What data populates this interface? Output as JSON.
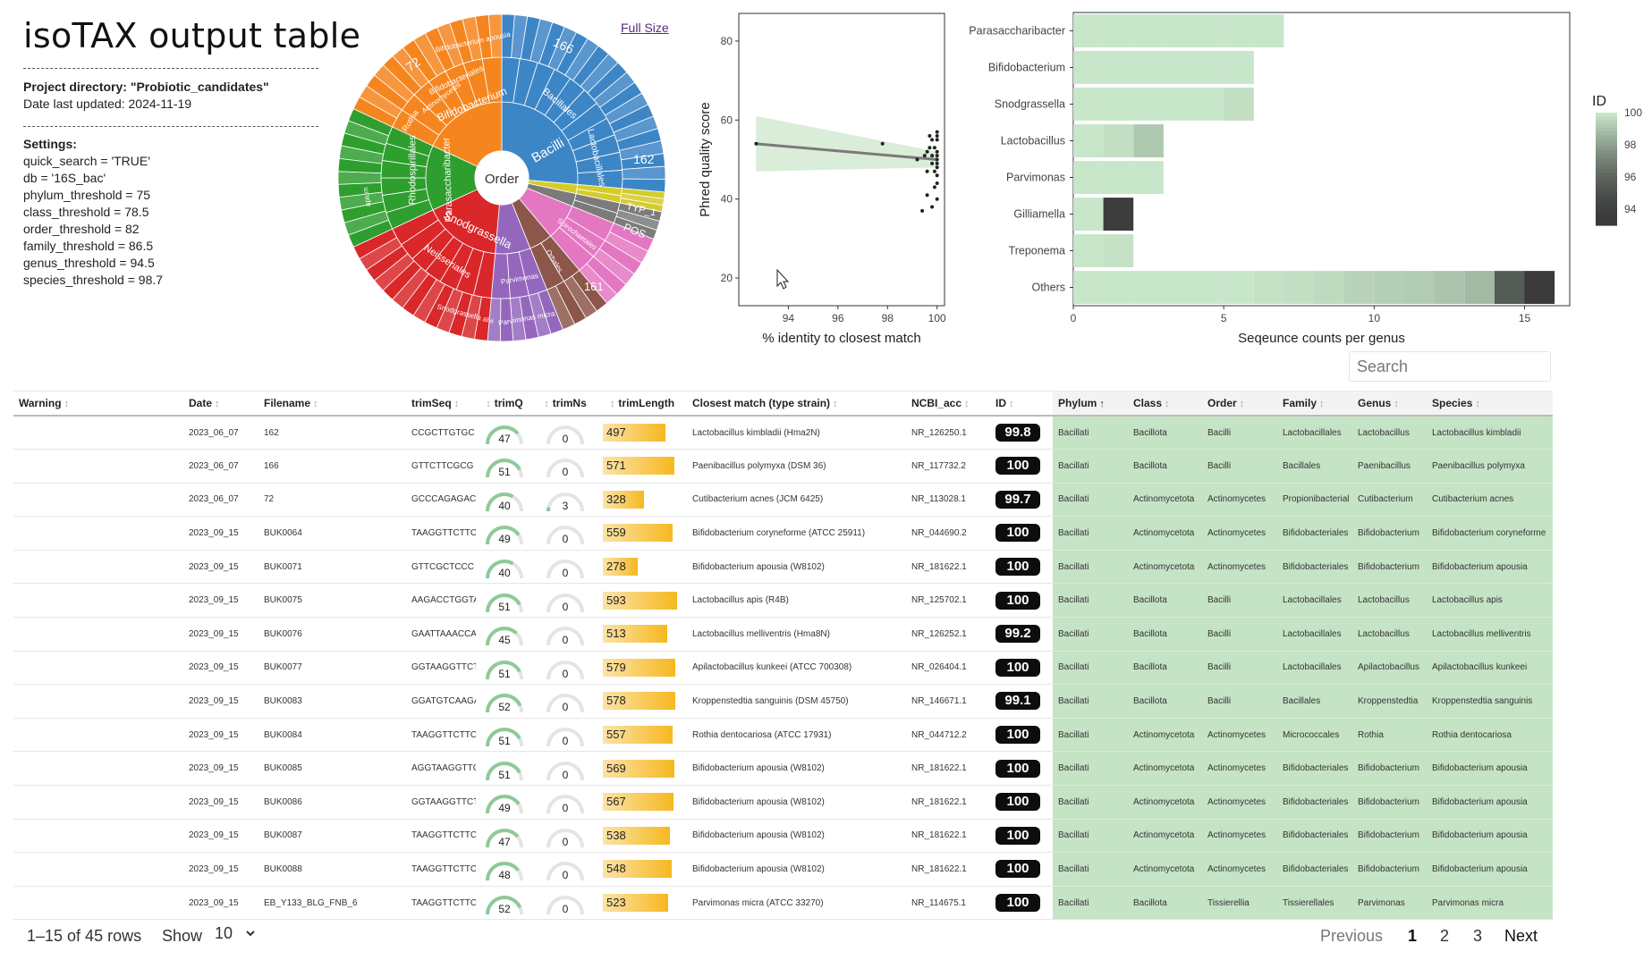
{
  "title": "isoTAX output table",
  "project": {
    "label": "Project directory:",
    "name": "\"Probiotic_candidates\"",
    "date_line": "Date last updated: 2024-11-19"
  },
  "settings": {
    "label": "Settings:",
    "lines": [
      "quick_search = 'TRUE'",
      "db = '16S_bac'",
      "phylum_threshold = 75",
      "class_threshold = 78.5",
      "order_threshold = 82",
      "family_threshold = 86.5",
      "genus_threshold = 94.5",
      "species_threshold = 98.7"
    ]
  },
  "full_size_link": "Full Size",
  "sunburst": {
    "center_label": "Order",
    "segments": [
      {
        "name": "Bacilli",
        "color": "#3d86c6"
      },
      {
        "name": "Bacillales",
        "color": "#3d86c6"
      },
      {
        "name": "Lactobacillales",
        "color": "#3d86c6"
      },
      {
        "name": "Actinomycetes",
        "color": "#f5861f"
      },
      {
        "name": "Bifidobacteriales",
        "color": "#f5861f"
      },
      {
        "name": "Bifidobacterium",
        "color": "#f5861f"
      },
      {
        "name": "Bifidobacterium apousia",
        "color": "#f5861f"
      },
      {
        "name": "Rothia",
        "color": "#f5861f"
      },
      {
        "name": "Rhodospirillales",
        "color": "#2e9e2e"
      },
      {
        "name": "Parasaccharibacter",
        "color": "#2e9e2e"
      },
      {
        "name": "apium",
        "color": "#2e9e2e"
      },
      {
        "name": "Neisseriales",
        "color": "#d9272a"
      },
      {
        "name": "Snodgrassella",
        "color": "#d9272a"
      },
      {
        "name": "Snodgrassella alvi",
        "color": "#d9272a"
      },
      {
        "name": "Parvimonas",
        "color": "#9467bd"
      },
      {
        "name": "Parvimonas micra",
        "color": "#9467bd"
      },
      {
        "name": "Orbales",
        "color": "#8c564b"
      },
      {
        "name": "Spirochaetales",
        "color": "#e377c2"
      },
      {
        "name": "TYP_1",
        "color": "#bcbd22"
      },
      {
        "name": "POS",
        "color": "#7f7f7f"
      }
    ],
    "counts": [
      "166",
      "162",
      "72",
      "161"
    ]
  },
  "scatter_chart": {
    "type": "scatter",
    "xlabel": "% identity to closest match",
    "ylabel": "Phred quality score",
    "xticks": [
      "94",
      "96",
      "98",
      "100"
    ],
    "yticks": [
      "20",
      "40",
      "60",
      "80"
    ],
    "xlim": [
      92,
      100.3
    ],
    "ylim": [
      13,
      87
    ],
    "points": [
      [
        92.7,
        54
      ],
      [
        97.8,
        54
      ],
      [
        99.2,
        50
      ],
      [
        99.5,
        51
      ],
      [
        99.6,
        47
      ],
      [
        99.6,
        52
      ],
      [
        99.7,
        56
      ],
      [
        99.7,
        53
      ],
      [
        99.8,
        55
      ],
      [
        99.8,
        38
      ],
      [
        99.8,
        49
      ],
      [
        99.9,
        43
      ],
      [
        99.9,
        47
      ],
      [
        100,
        52
      ],
      [
        100,
        49
      ],
      [
        100,
        57
      ],
      [
        100,
        44
      ],
      [
        100,
        55
      ],
      [
        100,
        51
      ],
      [
        100,
        48
      ],
      [
        100,
        40
      ],
      [
        100,
        56
      ],
      [
        99.4,
        37
      ],
      [
        99.6,
        41
      ],
      [
        100,
        46
      ],
      [
        99.9,
        53
      ],
      [
        100,
        50
      ],
      [
        99.8,
        51
      ]
    ],
    "trend": {
      "x0": 92.7,
      "y0": 54,
      "x1": 100,
      "y1": 50
    }
  },
  "chart_data": {
    "type": "bar",
    "title": "",
    "xlabel": "Seqeunce counts per genus",
    "ylabel": "",
    "xlim": [
      0,
      16.5
    ],
    "xticks": [
      "0",
      "5",
      "10",
      "15"
    ],
    "categories": [
      "Parasaccharibacter",
      "Bifidobacterium",
      "Snodgrassella",
      "Lactobacillus",
      "Parvimonas",
      "Gilliamella",
      "Treponema",
      "Others"
    ],
    "segments": [
      [
        100,
        100,
        100,
        100,
        100,
        100,
        100
      ],
      [
        100,
        100,
        100,
        100,
        100,
        100
      ],
      [
        100,
        100,
        100,
        100,
        100,
        99.8
      ],
      [
        100,
        99.8,
        99.2
      ],
      [
        100,
        100,
        100
      ],
      [
        100,
        93.5
      ],
      [
        100,
        99.9
      ],
      [
        100,
        100,
        100,
        100,
        100,
        100,
        99.9,
        99.8,
        99.7,
        99.5,
        99.4,
        99.3,
        99.1,
        98.8,
        95.5,
        93
      ]
    ],
    "legend": {
      "title": "ID",
      "ticks": [
        "100",
        "98",
        "96",
        "94"
      ],
      "range": [
        93,
        100
      ]
    }
  },
  "table": {
    "search_placeholder": "Search",
    "columns": [
      "Warning",
      "Date",
      "Filename",
      "trimSeq",
      "trimQ",
      "trimNs",
      "trimLength",
      "Closest match (type strain)",
      "NCBI_acc",
      "ID",
      "Phylum",
      "Class",
      "Order",
      "Family",
      "Genus",
      "Species"
    ],
    "rows": [
      {
        "warning": "",
        "date": "2023_06_07",
        "filename": "162",
        "seq": "CCGCTTGTGC",
        "q": 47,
        "ns": 0,
        "len": 497,
        "match": "Lactobacillus kimbladii (Hma2N)",
        "acc": "NR_126250.1",
        "id": "99.8",
        "phylum": "Bacillati",
        "class": "Bacillota",
        "order": "Bacilli",
        "family": "Lactobacillales",
        "genus": "Lactobacillus",
        "species": "Lactobacillus kimbladii"
      },
      {
        "warning": "",
        "date": "2023_06_07",
        "filename": "166",
        "seq": "GTTCTTCGCG",
        "q": 51,
        "ns": 0,
        "len": 571,
        "match": "Paenibacillus polymyxa (DSM 36)",
        "acc": "NR_117732.2",
        "id": "100",
        "phylum": "Bacillati",
        "class": "Bacillota",
        "order": "Bacilli",
        "family": "Bacillales",
        "genus": "Paenibacillus",
        "species": "Paenibacillus polymyxa"
      },
      {
        "warning": "",
        "date": "2023_06_07",
        "filename": "72",
        "seq": "GCCCAGAGAC",
        "q": 40,
        "ns": 3,
        "len": 328,
        "match": "Cutibacterium acnes (JCM 6425)",
        "acc": "NR_113028.1",
        "id": "99.7",
        "phylum": "Bacillati",
        "class": "Actinomycetota",
        "order": "Actinomycetes",
        "family": "Propionibacterial",
        "genus": "Cutibacterium",
        "species": "Cutibacterium acnes"
      },
      {
        "warning": "",
        "date": "2023_09_15",
        "filename": "BUK0064",
        "seq": "TAAGGTTCTTC",
        "q": 49,
        "ns": 0,
        "len": 559,
        "match": "Bifidobacterium coryneforme (ATCC 25911)",
        "acc": "NR_044690.2",
        "id": "100",
        "phylum": "Bacillati",
        "class": "Actinomycetota",
        "order": "Actinomycetes",
        "family": "Bifidobacteriales",
        "genus": "Bifidobacterium",
        "species": "Bifidobacterium coryneforme"
      },
      {
        "warning": "",
        "date": "2023_09_15",
        "filename": "BUK0071",
        "seq": "GTTCGCTCCC",
        "q": 40,
        "ns": 0,
        "len": 278,
        "match": "Bifidobacterium apousia (W8102)",
        "acc": "NR_181622.1",
        "id": "100",
        "phylum": "Bacillati",
        "class": "Actinomycetota",
        "order": "Actinomycetes",
        "family": "Bifidobacteriales",
        "genus": "Bifidobacterium",
        "species": "Bifidobacterium apousia"
      },
      {
        "warning": "",
        "date": "2023_09_15",
        "filename": "BUK0075",
        "seq": "AAGACCTGGTA",
        "q": 51,
        "ns": 0,
        "len": 593,
        "match": "Lactobacillus apis (R4B)",
        "acc": "NR_125702.1",
        "id": "100",
        "phylum": "Bacillati",
        "class": "Bacillota",
        "order": "Bacilli",
        "family": "Lactobacillales",
        "genus": "Lactobacillus",
        "species": "Lactobacillus apis"
      },
      {
        "warning": "",
        "date": "2023_09_15",
        "filename": "BUK0076",
        "seq": "GAATTAAACCAC",
        "q": 45,
        "ns": 0,
        "len": 513,
        "match": "Lactobacillus melliventris (Hma8N)",
        "acc": "NR_126252.1",
        "id": "99.2",
        "phylum": "Bacillati",
        "class": "Bacillota",
        "order": "Bacilli",
        "family": "Lactobacillales",
        "genus": "Lactobacillus",
        "species": "Lactobacillus melliventris"
      },
      {
        "warning": "",
        "date": "2023_09_15",
        "filename": "BUK0077",
        "seq": "GGTAAGGTTCT",
        "q": 51,
        "ns": 0,
        "len": 579,
        "match": "Apilactobacillus kunkeei (ATCC 700308)",
        "acc": "NR_026404.1",
        "id": "100",
        "phylum": "Bacillati",
        "class": "Bacillota",
        "order": "Bacilli",
        "family": "Lactobacillales",
        "genus": "Apilactobacillus",
        "species": "Apilactobacillus kunkeei"
      },
      {
        "warning": "",
        "date": "2023_09_15",
        "filename": "BUK0083",
        "seq": "GGATGTCAAGA",
        "q": 52,
        "ns": 0,
        "len": 578,
        "match": "Kroppenstedtia sanguinis (DSM 45750)",
        "acc": "NR_146671.1",
        "id": "99.1",
        "phylum": "Bacillati",
        "class": "Bacillota",
        "order": "Bacilli",
        "family": "Bacillales",
        "genus": "Kroppenstedtia",
        "species": "Kroppenstedtia sanguinis"
      },
      {
        "warning": "",
        "date": "2023_09_15",
        "filename": "BUK0084",
        "seq": "TAAGGTTCTTC",
        "q": 51,
        "ns": 0,
        "len": 557,
        "match": "Rothia dentocariosa (ATCC 17931)",
        "acc": "NR_044712.2",
        "id": "100",
        "phylum": "Bacillati",
        "class": "Actinomycetota",
        "order": "Actinomycetes",
        "family": "Micrococcales",
        "genus": "Rothia",
        "species": "Rothia dentocariosa"
      },
      {
        "warning": "",
        "date": "2023_09_15",
        "filename": "BUK0085",
        "seq": "AGGTAAGGTTC",
        "q": 51,
        "ns": 0,
        "len": 569,
        "match": "Bifidobacterium apousia (W8102)",
        "acc": "NR_181622.1",
        "id": "100",
        "phylum": "Bacillati",
        "class": "Actinomycetota",
        "order": "Actinomycetes",
        "family": "Bifidobacteriales",
        "genus": "Bifidobacterium",
        "species": "Bifidobacterium apousia"
      },
      {
        "warning": "",
        "date": "2023_09_15",
        "filename": "BUK0086",
        "seq": "GGTAAGGTTCT",
        "q": 49,
        "ns": 0,
        "len": 567,
        "match": "Bifidobacterium apousia (W8102)",
        "acc": "NR_181622.1",
        "id": "100",
        "phylum": "Bacillati",
        "class": "Actinomycetota",
        "order": "Actinomycetes",
        "family": "Bifidobacteriales",
        "genus": "Bifidobacterium",
        "species": "Bifidobacterium apousia"
      },
      {
        "warning": "",
        "date": "2023_09_15",
        "filename": "BUK0087",
        "seq": "TAAGGTTCTTC",
        "q": 47,
        "ns": 0,
        "len": 538,
        "match": "Bifidobacterium apousia (W8102)",
        "acc": "NR_181622.1",
        "id": "100",
        "phylum": "Bacillati",
        "class": "Actinomycetota",
        "order": "Actinomycetes",
        "family": "Bifidobacteriales",
        "genus": "Bifidobacterium",
        "species": "Bifidobacterium apousia"
      },
      {
        "warning": "",
        "date": "2023_09_15",
        "filename": "BUK0088",
        "seq": "TAAGGTTCTTC",
        "q": 48,
        "ns": 0,
        "len": 548,
        "match": "Bifidobacterium apousia (W8102)",
        "acc": "NR_181622.1",
        "id": "100",
        "phylum": "Bacillati",
        "class": "Actinomycetota",
        "order": "Actinomycetes",
        "family": "Bifidobacteriales",
        "genus": "Bifidobacterium",
        "species": "Bifidobacterium apousia"
      },
      {
        "warning": "",
        "date": "2023_09_15",
        "filename": "EB_Y133_BLG_FNB_6",
        "seq": "TAAGGTTCTTC",
        "q": 52,
        "ns": 0,
        "len": 523,
        "match": "Parvimonas micra (ATCC 33270)",
        "acc": "NR_114675.1",
        "id": "100",
        "phylum": "Bacillati",
        "class": "Bacillota",
        "order": "Tissierellia",
        "family": "Tissierellales",
        "genus": "Parvimonas",
        "species": "Parvimonas micra"
      }
    ]
  },
  "pagination": {
    "summary": "1–15 of 45 rows",
    "show_label": "Show",
    "show_value": "10",
    "previous": "Previous",
    "pages": [
      "1",
      "2",
      "3"
    ],
    "current": "1",
    "next": "Next"
  },
  "colors": {
    "tax_bg": "#c5e3c5",
    "bar_light": "#c8e6c9",
    "bar_dark": "#3a3a3a",
    "length_bar": "#f6b81f",
    "id_badge": "#0d0d0d"
  }
}
